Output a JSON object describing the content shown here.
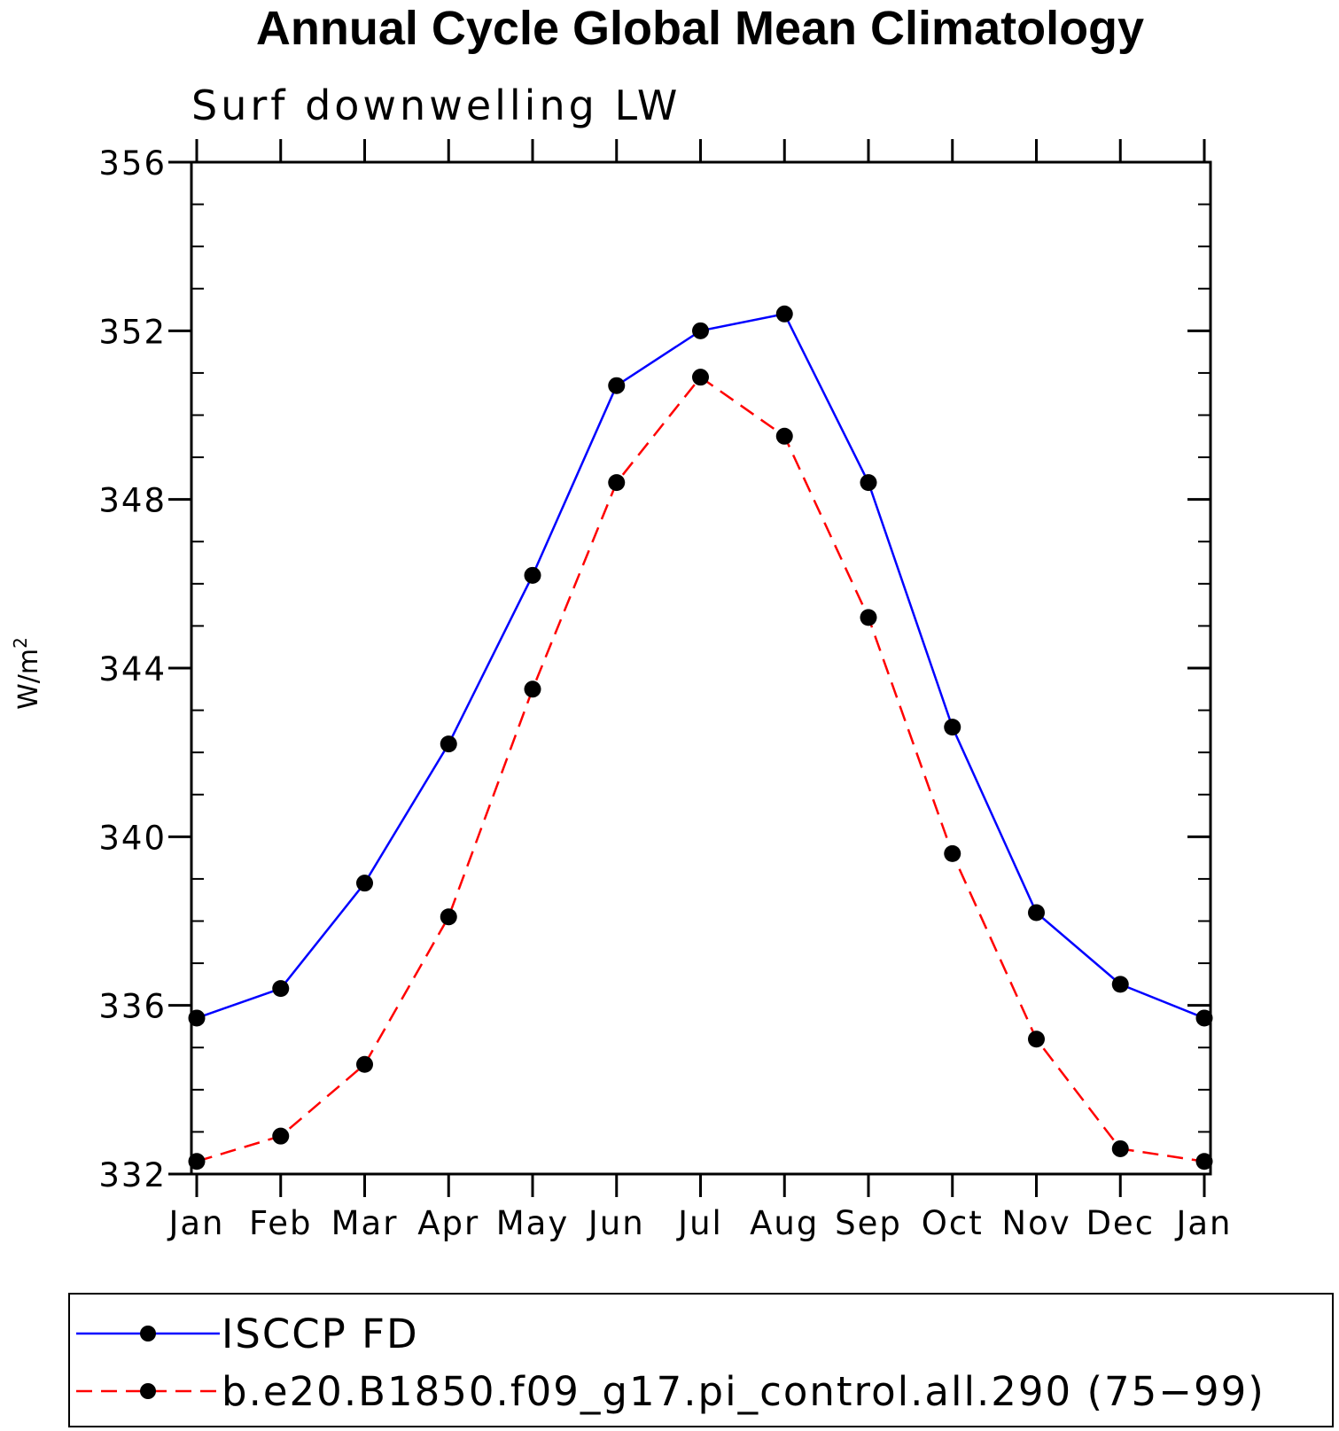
{
  "chart_data": {
    "type": "line",
    "title": "Annual Cycle Global Mean Climatology",
    "subtitle": "Surf downwelling LW",
    "ylabel": "W/m",
    "ylabel_superscript": "2",
    "ylim": [
      332,
      356
    ],
    "y_major_ticks": [
      332,
      336,
      340,
      344,
      348,
      352,
      356
    ],
    "y_minor_step": 1,
    "categories": [
      "Jan",
      "Feb",
      "Mar",
      "Apr",
      "May",
      "Jun",
      "Jul",
      "Aug",
      "Sep",
      "Oct",
      "Nov",
      "Dec",
      "Jan"
    ],
    "series": [
      {
        "name": "ISCCP FD",
        "color": "#0000ff",
        "dash": "solid",
        "marker": "filled-circle",
        "values": [
          335.7,
          336.4,
          338.9,
          342.2,
          346.2,
          350.7,
          352.0,
          352.4,
          348.4,
          342.6,
          338.2,
          336.5,
          335.7
        ]
      },
      {
        "name": "b.e20.B1850.f09_g17.pi_control.all.290 (75−99)",
        "color": "#ff0000",
        "dash": "dashed",
        "marker": "filled-circle",
        "values": [
          332.3,
          332.9,
          334.6,
          338.1,
          343.5,
          348.4,
          350.9,
          349.5,
          345.2,
          339.6,
          335.2,
          332.6,
          332.3
        ]
      }
    ],
    "legend_placement": "bottom"
  }
}
